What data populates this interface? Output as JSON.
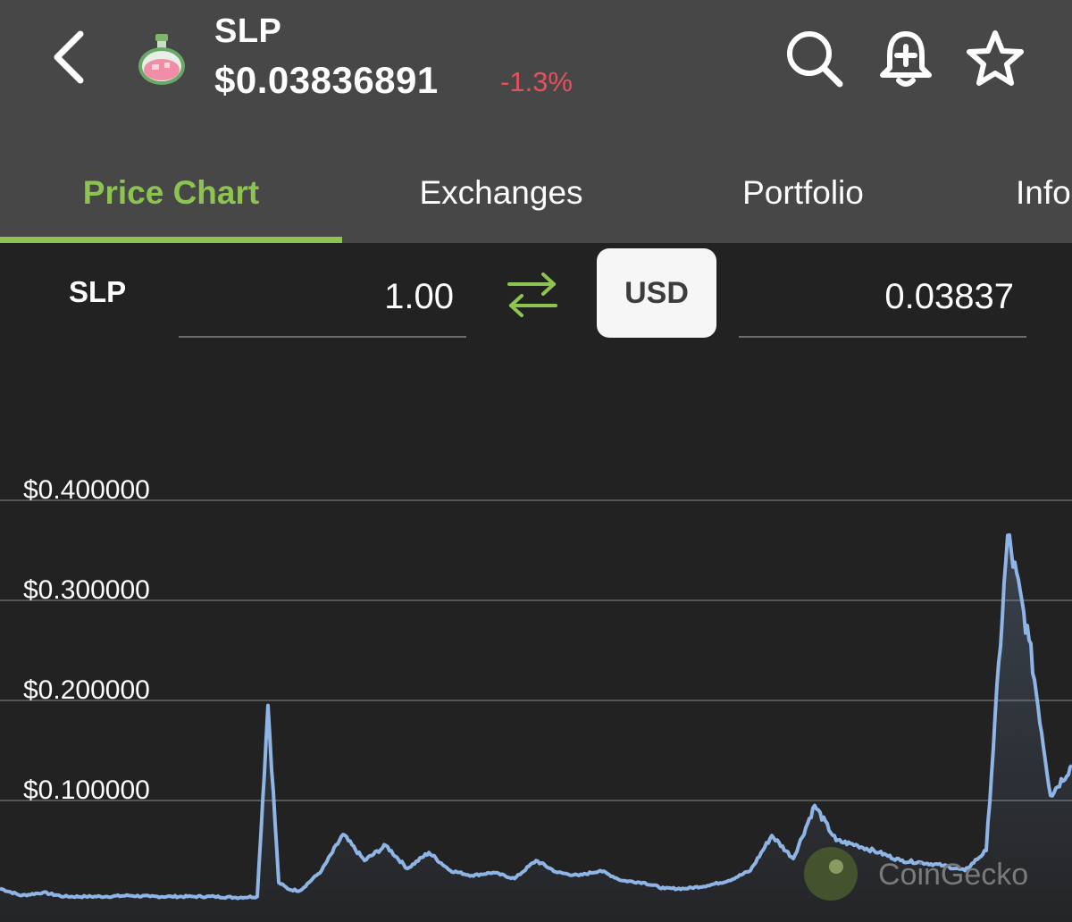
{
  "header": {
    "symbol": "SLP",
    "price": "$0.03836891",
    "change": "-1.3%",
    "change_color": "#e3525c",
    "icons": [
      "chevron-left-icon",
      "potion-coin-logo",
      "search-icon",
      "bell-plus-icon",
      "star-icon"
    ]
  },
  "tabs": [
    {
      "label": "Price Chart",
      "active": true
    },
    {
      "label": "Exchanges",
      "active": false
    },
    {
      "label": "Portfolio",
      "active": false
    },
    {
      "label": "Info",
      "active": false
    }
  ],
  "accent_color": "#8dc351",
  "converter": {
    "from_symbol": "SLP",
    "from_value": "1.00",
    "to_symbol": "USD",
    "to_value": "0.03837"
  },
  "watermark": "CoinGecko",
  "chart_data": {
    "type": "area",
    "line_color": "#8fb4e6",
    "y_ticks": [
      "$0.400000",
      "$0.300000",
      "$0.200000",
      "$0.100000"
    ],
    "y_tick_values": [
      0.4,
      0.3,
      0.2,
      0.1
    ],
    "grid": true,
    "x": [
      0,
      2,
      4,
      6,
      8,
      10,
      12,
      14,
      16,
      18,
      20,
      22,
      24,
      25,
      26,
      27,
      28,
      30,
      32,
      34,
      36,
      38,
      40,
      42,
      44,
      46,
      48,
      50,
      52,
      54,
      56,
      58,
      60,
      62,
      64,
      66,
      68,
      70,
      72,
      74,
      76,
      78,
      80,
      82,
      84,
      86,
      88,
      90,
      92,
      94,
      96,
      98,
      100
    ],
    "values": [
      0.012,
      0.005,
      0.008,
      0.004,
      0.004,
      0.004,
      0.005,
      0.004,
      0.004,
      0.004,
      0.004,
      0.003,
      0.004,
      0.195,
      0.018,
      0.011,
      0.01,
      0.03,
      0.066,
      0.04,
      0.055,
      0.032,
      0.048,
      0.03,
      0.025,
      0.028,
      0.022,
      0.04,
      0.028,
      0.025,
      0.03,
      0.02,
      0.018,
      0.012,
      0.012,
      0.015,
      0.02,
      0.03,
      0.065,
      0.042,
      0.095,
      0.06,
      0.055,
      0.048,
      0.04,
      0.038,
      0.035,
      0.03,
      0.05,
      0.365,
      0.26,
      0.105,
      0.135
    ]
  }
}
